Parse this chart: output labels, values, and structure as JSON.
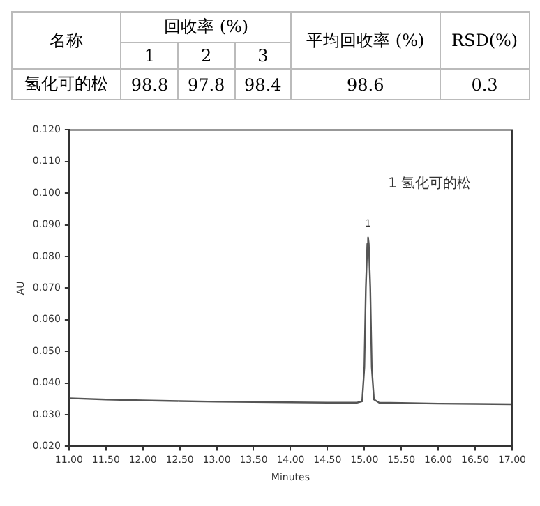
{
  "chart_data": [
    {
      "type": "other",
      "categories": [
        "1",
        "2",
        "3"
      ],
      "series": [
        {
          "name": "氢化可的松",
          "values": [
            98.8,
            97.8,
            98.4
          ],
          "value_labels": [
            "98.8",
            "97.8",
            "98.4"
          ]
        }
      ],
      "annotations": [
        "名称",
        "回收率 (%)",
        "平均回收率 (%)",
        "RSD(%)",
        "98.6",
        "0.3"
      ]
    },
    {
      "type": "line",
      "ylabel": "AU",
      "xlabel": "Minutes",
      "x": [
        11.0,
        11.5,
        12.0,
        12.5,
        13.0,
        13.5,
        14.0,
        14.5,
        14.9,
        14.97,
        15.0,
        15.02,
        15.04,
        15.05,
        15.06,
        15.08,
        15.1,
        15.13,
        15.2,
        15.5,
        16.0,
        16.5,
        17.0
      ],
      "series": [
        {
          "color": "#555555",
          "values": [
            0.0352,
            0.0348,
            0.0345,
            0.0343,
            0.0341,
            0.034,
            0.0339,
            0.0338,
            0.0338,
            0.0342,
            0.045,
            0.07,
            0.084,
            0.086,
            0.084,
            0.07,
            0.045,
            0.0348,
            0.0338,
            0.0337,
            0.0335,
            0.0334,
            0.0333
          ]
        }
      ],
      "xlim": [
        11.0,
        17.0
      ],
      "xticks": [
        {
          "value": 11,
          "label": "11.00"
        },
        {
          "value": 11.5,
          "label": "11.50"
        },
        {
          "value": 12,
          "label": "12.00"
        },
        {
          "value": 12.5,
          "label": "12.50"
        },
        {
          "value": 13,
          "label": "13.00"
        },
        {
          "value": 13.5,
          "label": "13.50"
        },
        {
          "value": 14,
          "label": "14.00"
        },
        {
          "value": 14.5,
          "label": "14.50"
        },
        {
          "value": 15,
          "label": "15.00"
        },
        {
          "value": 15.5,
          "label": "15.50"
        },
        {
          "value": 16,
          "label": "16.00"
        },
        {
          "value": 16.5,
          "label": "16.50"
        },
        {
          "value": 17,
          "label": "17.00"
        }
      ],
      "ylim": [
        0.02,
        0.12
      ],
      "yticks": [
        {
          "value": 0.02,
          "label": "0.020"
        },
        {
          "value": 0.03,
          "label": "0.030"
        },
        {
          "value": 0.04,
          "label": "0.040"
        },
        {
          "value": 0.05,
          "label": "0.050"
        },
        {
          "value": 0.06,
          "label": "0.060"
        },
        {
          "value": 0.07,
          "label": "0.070"
        },
        {
          "value": 0.08,
          "label": "0.080"
        },
        {
          "value": 0.09,
          "label": "0.090"
        },
        {
          "value": 0.1,
          "label": "0.100"
        },
        {
          "value": 0.11,
          "label": "0.110"
        },
        {
          "value": 0.12,
          "label": "0.120"
        }
      ],
      "grid": false,
      "legend": false,
      "marker": "none",
      "line_style": "solid",
      "annotations": [
        "1 氢化可的松",
        {
          "text": "1",
          "x": 15.05,
          "y": 0.086
        }
      ]
    }
  ]
}
